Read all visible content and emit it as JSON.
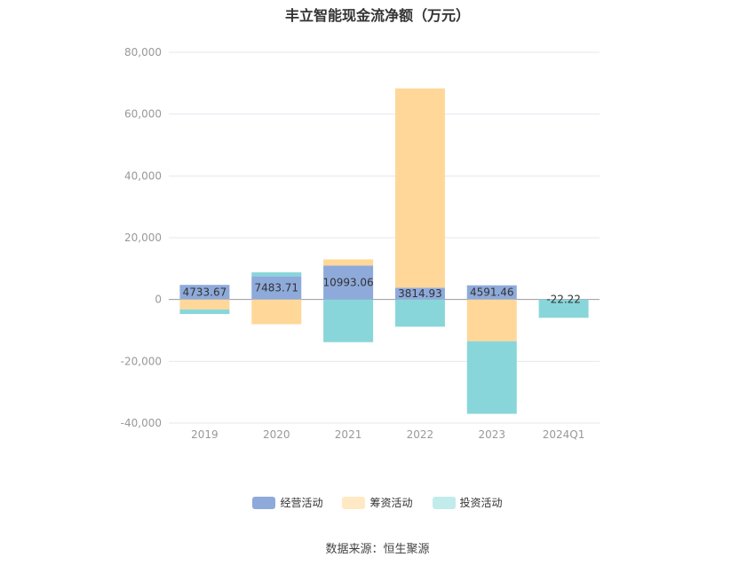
{
  "chart_data": {
    "type": "bar",
    "stacked": true,
    "title": "丰立智能现金流净额（万元）",
    "categories": [
      "2019",
      "2020",
      "2021",
      "2022",
      "2023",
      "2024Q1"
    ],
    "ylim": [
      -40000,
      80000
    ],
    "yticks": [
      80000,
      60000,
      40000,
      20000,
      0,
      -20000,
      -40000
    ],
    "ytick_labels": [
      "80,000",
      "60,000",
      "40,000",
      "20,000",
      "0",
      "-20,000",
      "-40,000"
    ],
    "series": [
      {
        "name": "经营活动",
        "color": "#8eaadb",
        "values": [
          4733.67,
          7483.71,
          10993.06,
          3814.93,
          4591.46,
          -22.22
        ]
      },
      {
        "name": "筹资活动",
        "color": "#ffd799",
        "values": [
          -3200,
          -8000,
          2000,
          64500,
          -13500,
          0
        ]
      },
      {
        "name": "投资活动",
        "color": "#88d6da",
        "values": [
          -1500,
          1300,
          -13800,
          -8800,
          -23500,
          -5900
        ]
      }
    ],
    "data_labels": [
      "4733.67",
      "7483.71",
      "10993.06",
      "3814.93",
      "4591.46",
      "-22.22"
    ],
    "grid": true,
    "legend_position": "bottom"
  },
  "source": "数据来源：恒生聚源"
}
